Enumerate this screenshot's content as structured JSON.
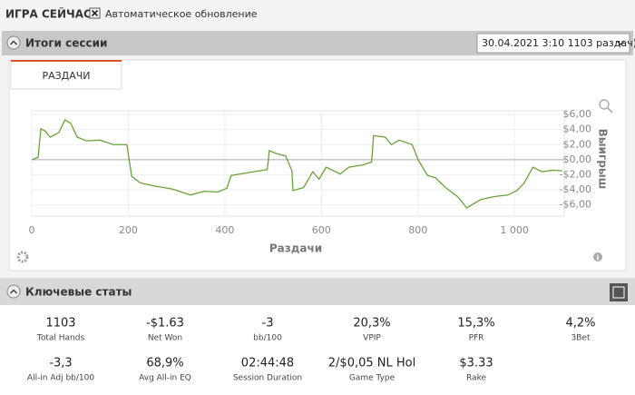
{
  "header": {
    "title": "ИГРА СЕЙЧАС",
    "auto_update": "Автоматическое обновление"
  },
  "session": {
    "title": "Итоги сессии",
    "dropdown": "30.04.2021 3:10 1103 раздач)",
    "tab": "РАЗДАЧИ"
  },
  "chart_data": {
    "type": "line",
    "xlabel": "Раздачи",
    "ylabel": "Выигрыш",
    "x": [
      0,
      13,
      19,
      28,
      38,
      56,
      69,
      81,
      94,
      113,
      141,
      169,
      197,
      207,
      225,
      254,
      291,
      329,
      357,
      385,
      404,
      413,
      432,
      460,
      488,
      492,
      507,
      526,
      539,
      541,
      563,
      582,
      595,
      610,
      639,
      657,
      686,
      704,
      708,
      732,
      745,
      761,
      788,
      801,
      820,
      836,
      857,
      882,
      901,
      930,
      958,
      986,
      1005,
      1020,
      1038,
      1057,
      1080,
      1099
    ],
    "series": [
      {
        "color": "#6aa23a",
        "values": [
          0,
          0.3,
          4.1,
          3.8,
          3.0,
          3.6,
          5.3,
          4.8,
          3.0,
          2.5,
          2.6,
          2.0,
          2.0,
          -2.2,
          -3.1,
          -3.5,
          -3.9,
          -4.7,
          -4.2,
          -4.3,
          -3.8,
          -2.1,
          -1.9,
          -1.6,
          -1.3,
          1.2,
          0.8,
          0.5,
          -1.5,
          -4.1,
          -3.7,
          -1.6,
          -2.6,
          -1.0,
          -1.9,
          -1.0,
          -0.7,
          -0.3,
          3.2,
          3.0,
          2.0,
          2.6,
          2.0,
          -0.1,
          -2.1,
          -2.4,
          -3.7,
          -4.9,
          -6.4,
          -5.3,
          -4.9,
          -4.7,
          -4.1,
          -3.1,
          -1.0,
          -1.6,
          -1.4,
          -1.5
        ]
      }
    ],
    "xlim": [
      0,
      1103
    ],
    "xticks": [
      0,
      200,
      400,
      600,
      800,
      {
        "value": 1000,
        "label": "1 000"
      }
    ],
    "ylim": [
      -7.5,
      6.5
    ],
    "yticks": [
      {
        "value": 6,
        "label": "$6,00"
      },
      {
        "value": 4,
        "label": "$4,00"
      },
      {
        "value": 2,
        "label": "$2,00"
      },
      {
        "value": 0,
        "label": "$0,00"
      },
      {
        "value": -2,
        "label": "-$2,00"
      },
      {
        "value": -4,
        "label": "-$4,00"
      },
      {
        "value": -6,
        "label": "-$6,00"
      }
    ]
  },
  "stats_panel": {
    "title": "Ключевые статы"
  },
  "stats": [
    {
      "value": "1103",
      "label": "Total Hands"
    },
    {
      "value": "-$1.63",
      "label": "Net Won"
    },
    {
      "value": "-3",
      "label": "bb/100"
    },
    {
      "value": "20,3%",
      "label": "VPIP"
    },
    {
      "value": "15,3%",
      "label": "PFR"
    },
    {
      "value": "4,2%",
      "label": "3Bet"
    },
    {
      "value": "-3,3",
      "label": "All-in Adj bb/100"
    },
    {
      "value": "68,9%",
      "label": "Avg All-in EQ"
    },
    {
      "value": "02:44:48",
      "label": "Session Duration"
    },
    {
      "value": "2/$0,05 NL Hol",
      "label": "Game Type"
    },
    {
      "value": "$3.33",
      "label": "Rake"
    }
  ]
}
